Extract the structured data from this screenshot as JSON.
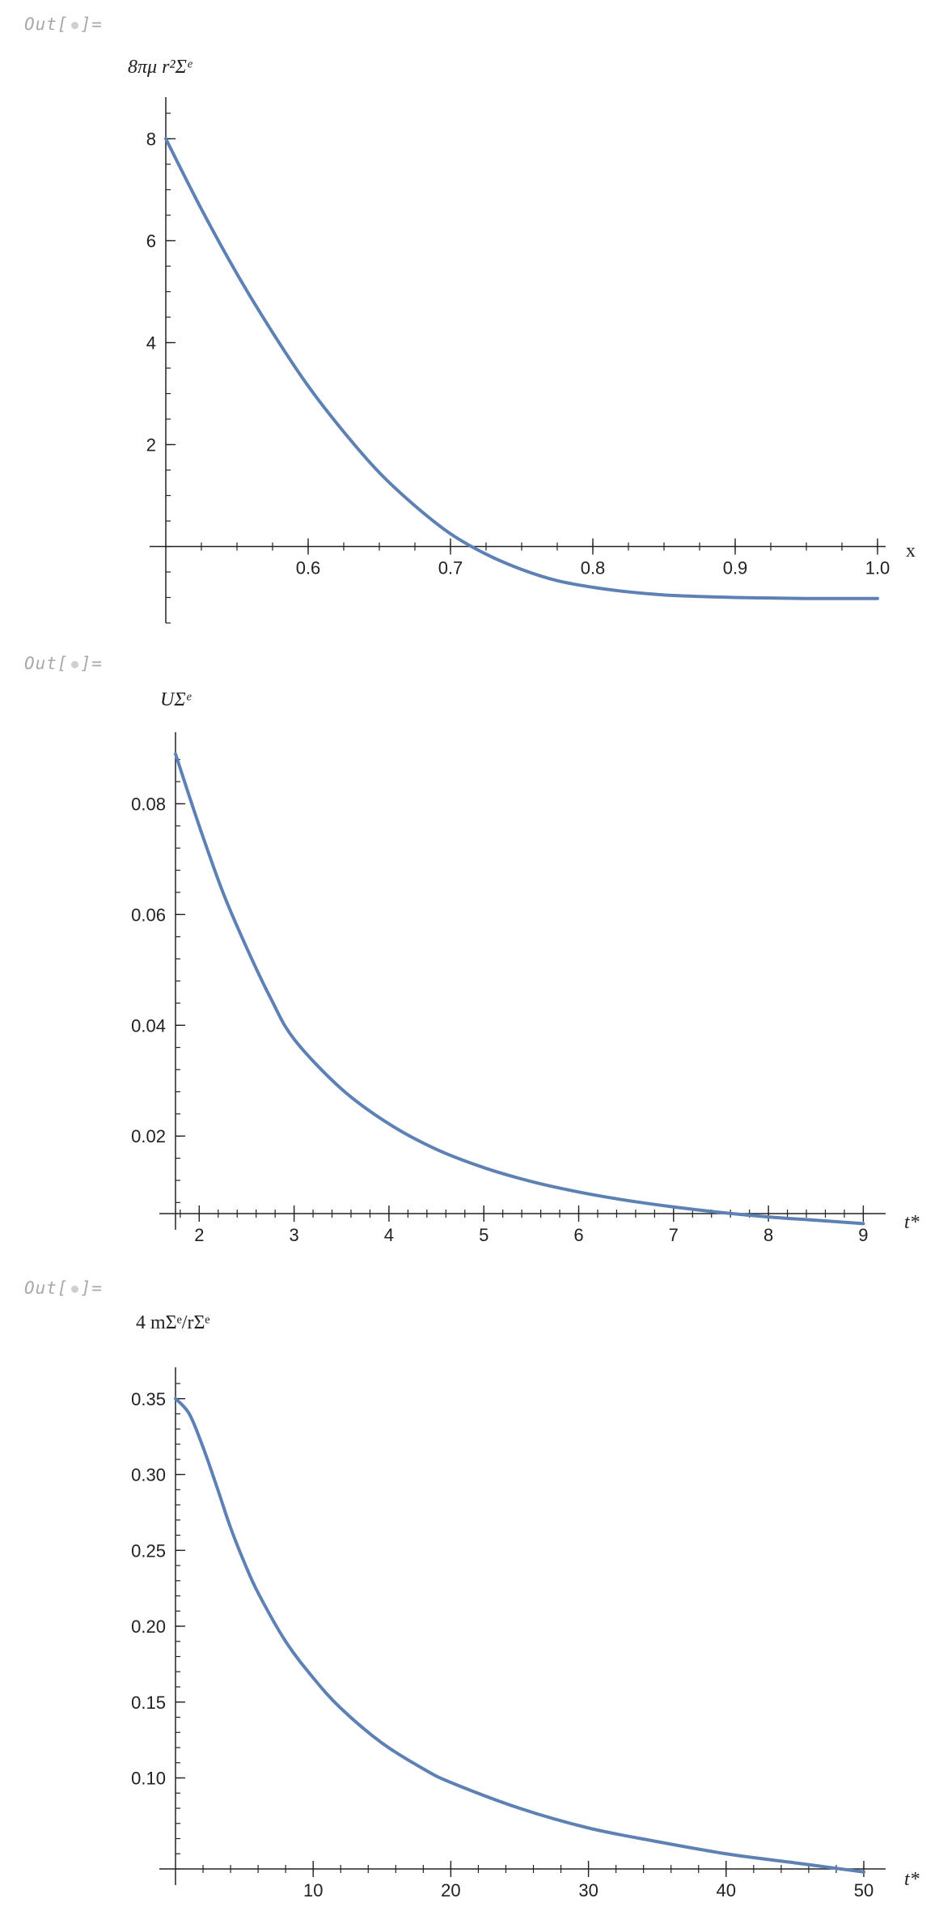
{
  "cells": [
    {
      "out_label": "Out[",
      "out_label_end": "]="
    },
    {
      "out_label": "Out[",
      "out_label_end": "]="
    },
    {
      "out_label": "Out[",
      "out_label_end": "]="
    }
  ],
  "colors": {
    "curve": "#5e81b5",
    "axis": "#222222",
    "label_gray": "#a8a8a8"
  },
  "chart_data": [
    {
      "type": "line",
      "ylabel": "8πμ r²Σᵉ",
      "xlabel": "x",
      "xlim": [
        0.5,
        1.0
      ],
      "ylim": [
        -1.5,
        8.5
      ],
      "x_ticks": [
        "0.6",
        "0.7",
        "0.8",
        "0.9",
        "1.0"
      ],
      "y_ticks": [
        "2",
        "4",
        "6",
        "8"
      ],
      "series": [
        {
          "x": [
            0.5,
            0.525,
            0.55,
            0.575,
            0.6,
            0.625,
            0.65,
            0.675,
            0.7,
            0.725,
            0.75,
            0.775,
            0.8,
            0.825,
            0.85,
            0.875,
            0.9,
            0.925,
            0.95,
            0.975,
            1.0
          ],
          "y": [
            8.0,
            6.62,
            5.35,
            4.2,
            3.15,
            2.25,
            1.45,
            0.8,
            0.25,
            -0.15,
            -0.45,
            -0.67,
            -0.8,
            -0.89,
            -0.95,
            -0.98,
            -1.0,
            -1.01,
            -1.02,
            -1.02,
            -1.02
          ]
        }
      ]
    },
    {
      "type": "line",
      "ylabel": "UΣᵉ",
      "xlabel": "t*",
      "xlim": [
        1.75,
        9.15
      ],
      "ylim": [
        0.006,
        0.09
      ],
      "x_ticks": [
        "2",
        "3",
        "4",
        "5",
        "6",
        "7",
        "8",
        "9"
      ],
      "y_ticks": [
        "0.02",
        "0.04",
        "0.06",
        "0.08"
      ],
      "series": [
        {
          "x": [
            1.75,
            2.0,
            2.25,
            2.5,
            2.75,
            3.0,
            3.5,
            4.0,
            4.5,
            5.0,
            5.5,
            6.0,
            6.5,
            7.0,
            7.5,
            8.0,
            8.5,
            9.0
          ],
          "y": [
            0.089,
            0.076,
            0.064,
            0.054,
            0.045,
            0.0375,
            0.0285,
            0.0222,
            0.0176,
            0.0143,
            0.0118,
            0.0099,
            0.0084,
            0.0072,
            0.0062,
            0.0054,
            0.0048,
            0.0042
          ]
        }
      ]
    },
    {
      "type": "line",
      "ylabel": "4 mΣᵉ/rΣᵉ",
      "xlabel": "t*",
      "xlim": [
        0,
        51
      ],
      "ylim": [
        0.04,
        0.36
      ],
      "x_ticks": [
        "10",
        "20",
        "30",
        "40",
        "50"
      ],
      "y_ticks": [
        "0.10",
        "0.15",
        "0.20",
        "0.25",
        "0.30",
        "0.35"
      ],
      "series": [
        {
          "x": [
            0,
            1,
            2,
            3,
            4,
            5,
            6,
            8,
            10,
            12,
            15,
            18,
            20,
            25,
            30,
            35,
            40,
            45,
            50
          ],
          "y": [
            0.35,
            0.34,
            0.318,
            0.292,
            0.265,
            0.242,
            0.222,
            0.19,
            0.166,
            0.146,
            0.123,
            0.106,
            0.097,
            0.08,
            0.067,
            0.058,
            0.05,
            0.044,
            0.038
          ]
        }
      ]
    }
  ]
}
